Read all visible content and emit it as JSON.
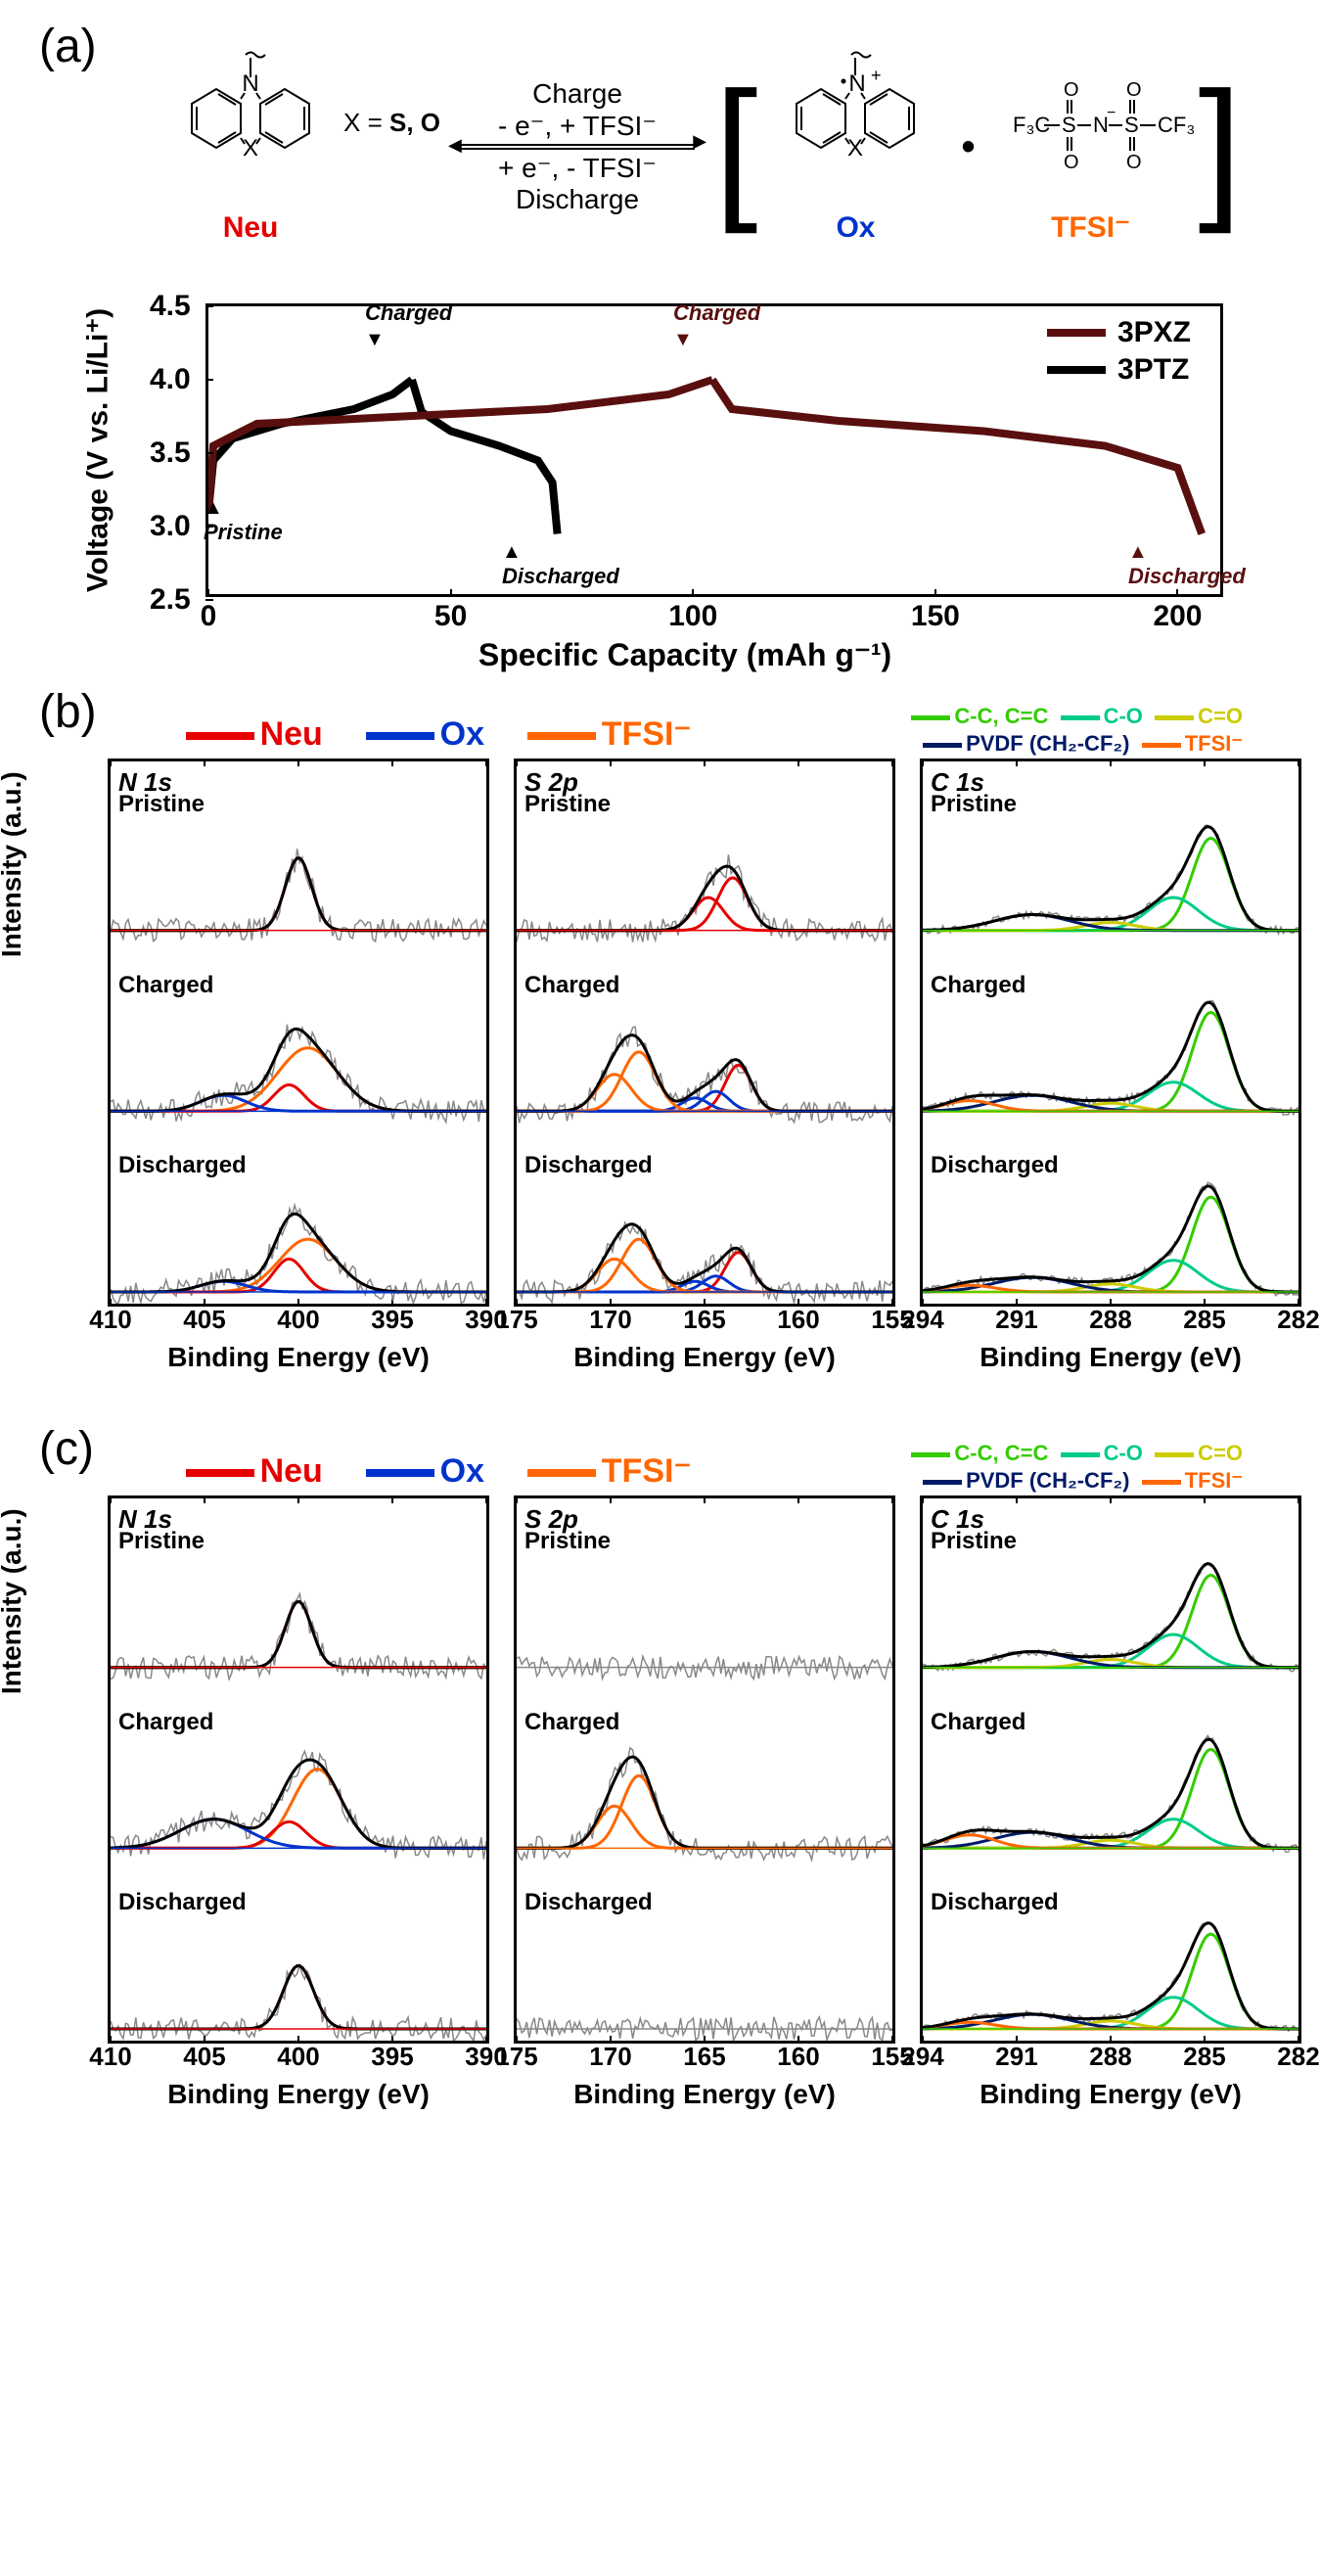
{
  "panels": {
    "a": "(a)",
    "b": "(b)",
    "c": "(c)"
  },
  "scheme": {
    "x_text": "X = ",
    "x_values": "S, O",
    "neu_label": "Neu",
    "ox_label": "Ox",
    "tfsi_label": "TFSI⁻",
    "charge_top": "Charge",
    "charge_line2": "- e⁻, + TFSI⁻",
    "disch_line1": "+ e⁻, - TFSI⁻",
    "disch_bottom": "Discharge",
    "n_plus": "N⁺",
    "dot": "•",
    "n_label": "N",
    "x_label": "X",
    "tfsi_struct": "F₃C–SO₂–N⁻–SO₂–CF₃",
    "colors": {
      "neu": "#e60000",
      "ox": "#0033cc",
      "tfsi": "#ff6600"
    }
  },
  "chart_a": {
    "xlabel": "Specific Capacity (mAh g⁻¹)",
    "ylabel": "Voltage (V vs. Li/Li⁺)",
    "xlim": [
      0,
      210
    ],
    "ylim": [
      2.5,
      4.5
    ],
    "xticks": [
      0,
      50,
      100,
      150,
      200
    ],
    "yticks": [
      2.5,
      3.0,
      3.5,
      4.0,
      4.5
    ],
    "series": [
      {
        "name": "3PXZ",
        "color": "#5a0f0f"
      },
      {
        "name": "3PTZ",
        "color": "#000000"
      }
    ],
    "markers": {
      "pristine": "Pristine",
      "charged": "Charged",
      "discharged": "Discharged"
    },
    "curves": {
      "ptz_charge": [
        [
          0,
          3.1
        ],
        [
          1,
          3.45
        ],
        [
          5,
          3.6
        ],
        [
          15,
          3.7
        ],
        [
          30,
          3.8
        ],
        [
          38,
          3.9
        ],
        [
          42,
          4.0
        ]
      ],
      "ptz_discharge": [
        [
          42,
          4.0
        ],
        [
          44,
          3.78
        ],
        [
          50,
          3.65
        ],
        [
          60,
          3.55
        ],
        [
          68,
          3.45
        ],
        [
          71,
          3.3
        ],
        [
          72,
          2.95
        ]
      ],
      "pxz_charge": [
        [
          0,
          3.1
        ],
        [
          1,
          3.55
        ],
        [
          10,
          3.7
        ],
        [
          40,
          3.75
        ],
        [
          70,
          3.8
        ],
        [
          95,
          3.9
        ],
        [
          104,
          4.0
        ]
      ],
      "pxz_discharge": [
        [
          104,
          4.0
        ],
        [
          108,
          3.8
        ],
        [
          130,
          3.72
        ],
        [
          160,
          3.65
        ],
        [
          185,
          3.55
        ],
        [
          200,
          3.4
        ],
        [
          205,
          2.95
        ]
      ]
    }
  },
  "xps": {
    "species_legend": [
      {
        "label": "Neu",
        "color": "#e60000"
      },
      {
        "label": "Ox",
        "color": "#0033cc"
      },
      {
        "label": "TFSI⁻",
        "color": "#ff6600"
      }
    ],
    "c1s_legend": [
      {
        "label": "C-C, C=C",
        "color": "#33cc00"
      },
      {
        "label": "C-O",
        "color": "#00cc88"
      },
      {
        "label": "C=O",
        "color": "#cccc00"
      },
      {
        "label": "PVDF (CH₂-CF₂)",
        "color": "#001a66"
      },
      {
        "label": "TFSI⁻",
        "color": "#ff6600"
      }
    ],
    "columns": [
      {
        "title": "N 1s",
        "xlim": [
          410,
          390
        ],
        "xticks": [
          410,
          405,
          400,
          395,
          390
        ]
      },
      {
        "title": "S 2p",
        "xlim": [
          175,
          155
        ],
        "xticks": [
          175,
          170,
          165,
          160,
          155
        ]
      },
      {
        "title": "C 1s",
        "xlim": [
          294,
          282
        ],
        "xticks": [
          294,
          291,
          288,
          285,
          282
        ]
      }
    ],
    "states": [
      "Pristine",
      "Charged",
      "Discharged"
    ],
    "ylabel": "Intensity (a.u.)",
    "xlabel": "Binding Energy (eV)",
    "colors": {
      "raw": "#888888",
      "fit": "#000000",
      "neu": "#e60000",
      "ox": "#0033cc",
      "tfsi": "#ff6600",
      "cc": "#33cc00",
      "co": "#00cc88",
      "ceo": "#cccc00",
      "pvdf": "#001a66"
    }
  }
}
